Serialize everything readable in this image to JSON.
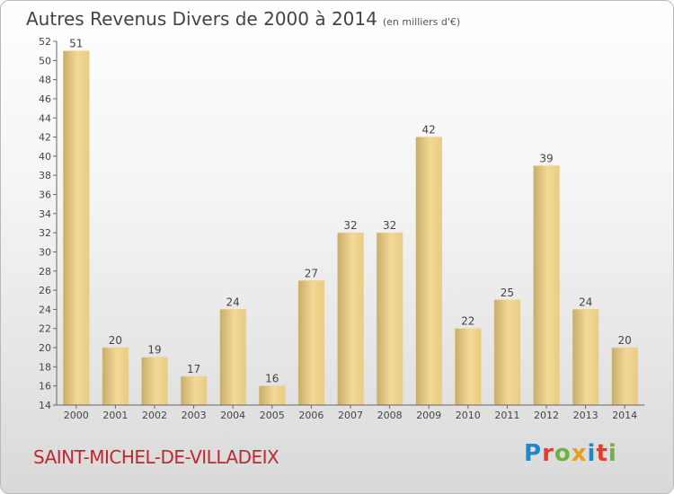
{
  "header": {
    "title": "Autres Revenus Divers de 2000 à 2014",
    "subtitle": "(en milliers d'€)"
  },
  "footer": {
    "commune": "SAINT-MICHEL-DE-VILLADEIX",
    "logo": "Proxiti"
  },
  "colors": {
    "bar_fill_light": "#f3d995",
    "bar_fill_dark": "#c8ad6a",
    "commune_text": "#c0282e",
    "logo_letters": [
      "#1e88c8",
      "#e63c2e",
      "#6cb33f",
      "#e5a11a",
      "#1e88c8",
      "#e63c2e",
      "#6cb33f"
    ]
  },
  "chart_data": {
    "type": "bar",
    "categories": [
      "2000",
      "2001",
      "2002",
      "2003",
      "2004",
      "2005",
      "2006",
      "2007",
      "2008",
      "2009",
      "2010",
      "2011",
      "2012",
      "2013",
      "2014"
    ],
    "values": [
      51,
      20,
      19,
      17,
      24,
      16,
      27,
      32,
      32,
      42,
      22,
      25,
      39,
      24,
      20
    ],
    "ylim": [
      14,
      52
    ],
    "ytick_step": 2,
    "grid": false,
    "data_labels": true
  }
}
